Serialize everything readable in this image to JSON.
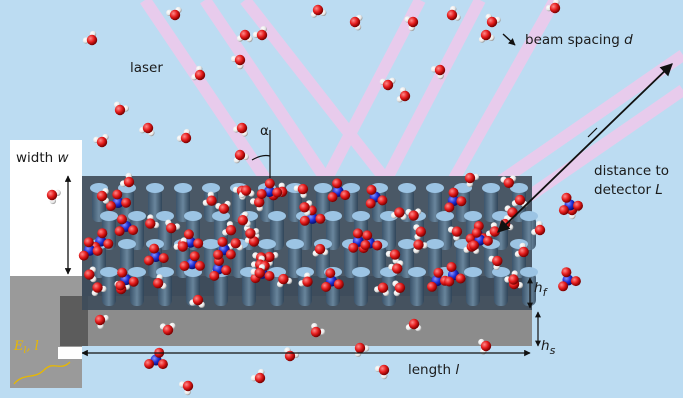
{
  "labels": {
    "laser": "laser",
    "beam_spacing_prefix": "beam spacing ",
    "beam_spacing_var": "d",
    "width_prefix": "width ",
    "width_var": "w",
    "alpha": "α",
    "distance_line1": "distance to",
    "distance_line2_prefix": "detector ",
    "distance_var": "L",
    "hf_base": "h",
    "hf_sub": "f",
    "hs_base": "h",
    "hs_sub": "s",
    "length_prefix": "length ",
    "length_var": "l",
    "e_base": "E",
    "e_sub": "l",
    "e_suffix": ", l"
  },
  "colors": {
    "sky": "#bcdcf2",
    "laser_beam": "#f7c6ea",
    "film": "#3d4b5a",
    "substrate": "#8a8a8a",
    "oxygen": "#e41b1b",
    "hydrogen": "#f5f5f5",
    "nitrogen": "#1f2fd6",
    "cross_arrow": "#e8b800"
  }
}
